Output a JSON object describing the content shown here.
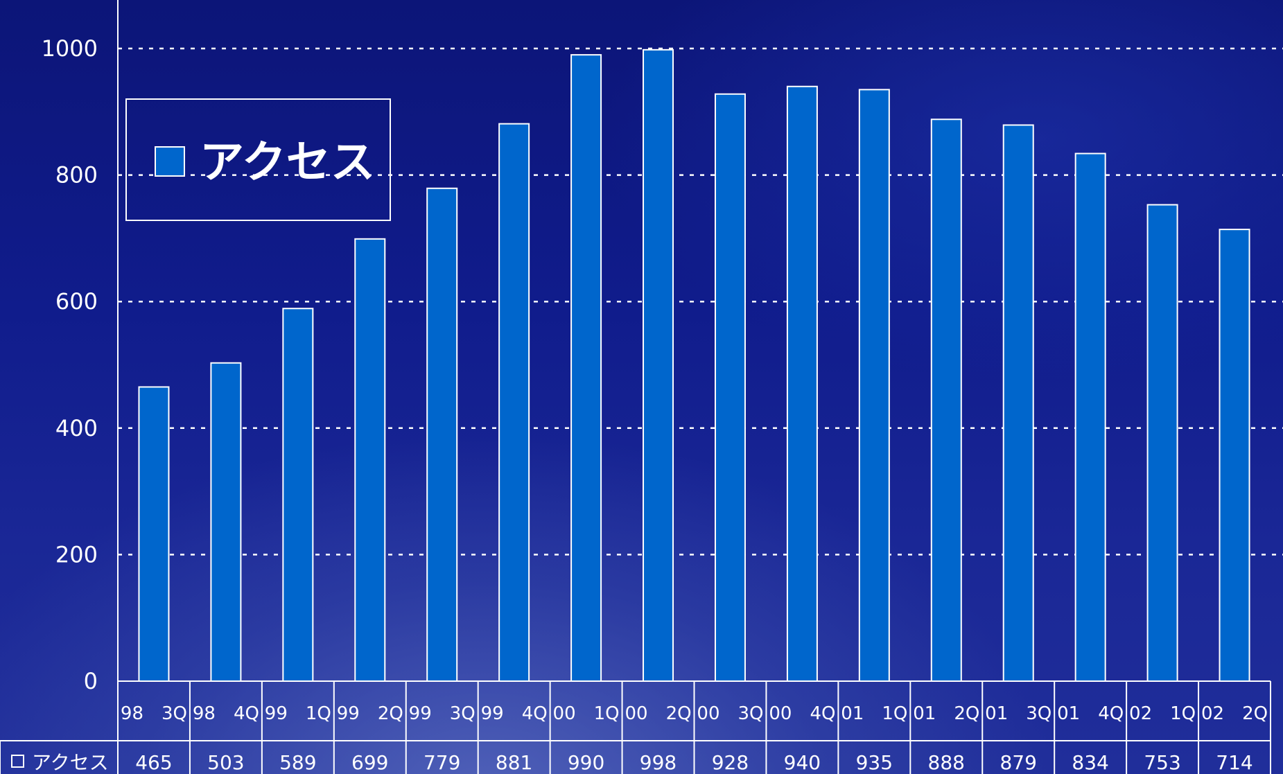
{
  "chart_data": {
    "type": "bar",
    "title": "",
    "xlabel": "",
    "ylabel": "",
    "ylim": [
      0,
      1000
    ],
    "yticks": [
      0,
      200,
      400,
      600,
      800,
      1000
    ],
    "grid": true,
    "legend_position": "top-left",
    "categories": [
      "98　3Q",
      "98　4Q",
      "99　1Q",
      "99　2Q",
      "99　3Q",
      "99　4Q",
      "00　1Q",
      "00　2Q",
      "00　3Q",
      "00　4Q",
      "01　1Q",
      "01　2Q",
      "01　3Q",
      "01　4Q",
      "02　1Q",
      "02　2Q"
    ],
    "series": [
      {
        "name": "アクセス",
        "values": [
          465,
          503,
          589,
          699,
          779,
          881,
          990,
          998,
          928,
          940,
          935,
          888,
          879,
          834,
          753,
          714
        ],
        "color": "#0066cc"
      }
    ],
    "data_table": true
  },
  "colors": {
    "bar_fill": "#0066cc",
    "bar_stroke": "#ffffff",
    "text": "#ffffff"
  }
}
